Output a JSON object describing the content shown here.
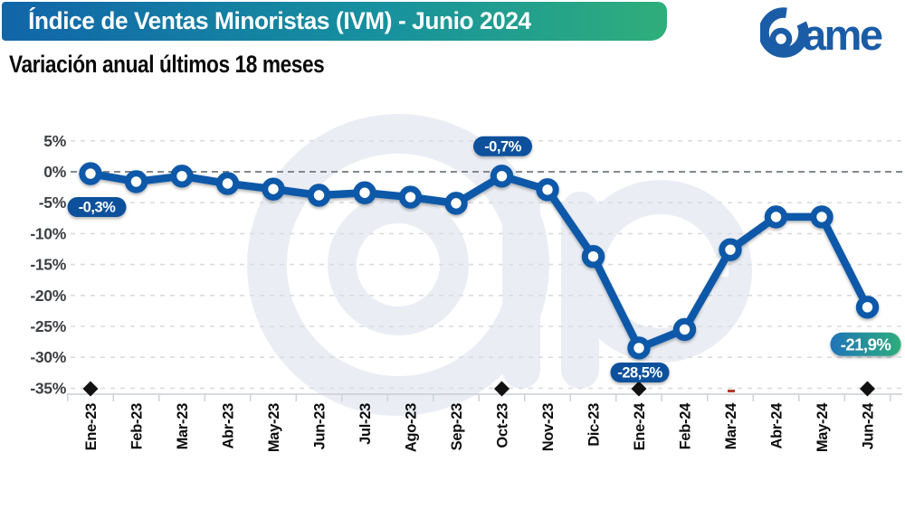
{
  "header": {
    "title": "Índice de Ventas Minoristas (IVM) - Junio 2024",
    "subtitle": "Variación anual últimos 18 meses",
    "brand": "Came",
    "logo_text": "ame"
  },
  "theme": {
    "banner_gradient_start": "#1165A9",
    "banner_gradient_end": "#2FAE7B",
    "line_color": "#0E59A8",
    "marker_fill": "#FFFFFF",
    "pill_color": "#0C519D",
    "highlight_pill_gradient_start": "#1F74B8",
    "highlight_pill_gradient_end": "#2EAD7C",
    "logo_color": "#1B5CA7",
    "watermark_color": "#EAEEF4",
    "zero_line_color": "#84888C",
    "gridline_color": "#D9DCE1",
    "diamond_marker_color": "#111111"
  },
  "chart_data": {
    "type": "line",
    "title": "Índice de Ventas Minoristas (IVM) - Junio 2024",
    "subtitle": "Variación anual últimos 18 meses",
    "categories": [
      "Ene-23",
      "Feb-23",
      "Mar-23",
      "Abr-23",
      "May-23",
      "Jun-23",
      "Jul-23",
      "Ago-23",
      "Sep-23",
      "Oct-23",
      "Nov-23",
      "Dic-23",
      "Ene-24",
      "Feb-24",
      "Mar-24",
      "Abr-24",
      "May-24",
      "Jun-24"
    ],
    "values": [
      -0.3,
      -1.6,
      -0.7,
      -1.9,
      -2.8,
      -3.8,
      -3.4,
      -4.1,
      -5.1,
      -0.7,
      -2.9,
      -13.7,
      -28.5,
      -25.5,
      -12.6,
      -7.3,
      -7.3,
      -21.9
    ],
    "unit": "%",
    "y_ticks": [
      "5%",
      "0%",
      "-5%",
      "-10%",
      "-15%",
      "-20%",
      "-25%",
      "-30%",
      "-35%"
    ],
    "ylim": [
      -35,
      5
    ],
    "grid": "horizontal-dashed",
    "zero_line": true,
    "legend": "none",
    "annotations": [
      {
        "month": "Ene-23",
        "label": "-0,3%",
        "value": -0.3,
        "placement": "below",
        "highlight": false
      },
      {
        "month": "Oct-23",
        "label": "-0,7%",
        "value": -0.7,
        "placement": "above",
        "highlight": false
      },
      {
        "month": "Ene-24",
        "label": "-28,5%",
        "value": -28.5,
        "placement": "below",
        "highlight": false
      },
      {
        "month": "Jun-24",
        "label": "-21,9%",
        "value": -21.9,
        "placement": "below",
        "highlight": true
      }
    ],
    "marked_months": [
      "Ene-23",
      "Oct-23",
      "Ene-24",
      "Jun-24"
    ]
  }
}
